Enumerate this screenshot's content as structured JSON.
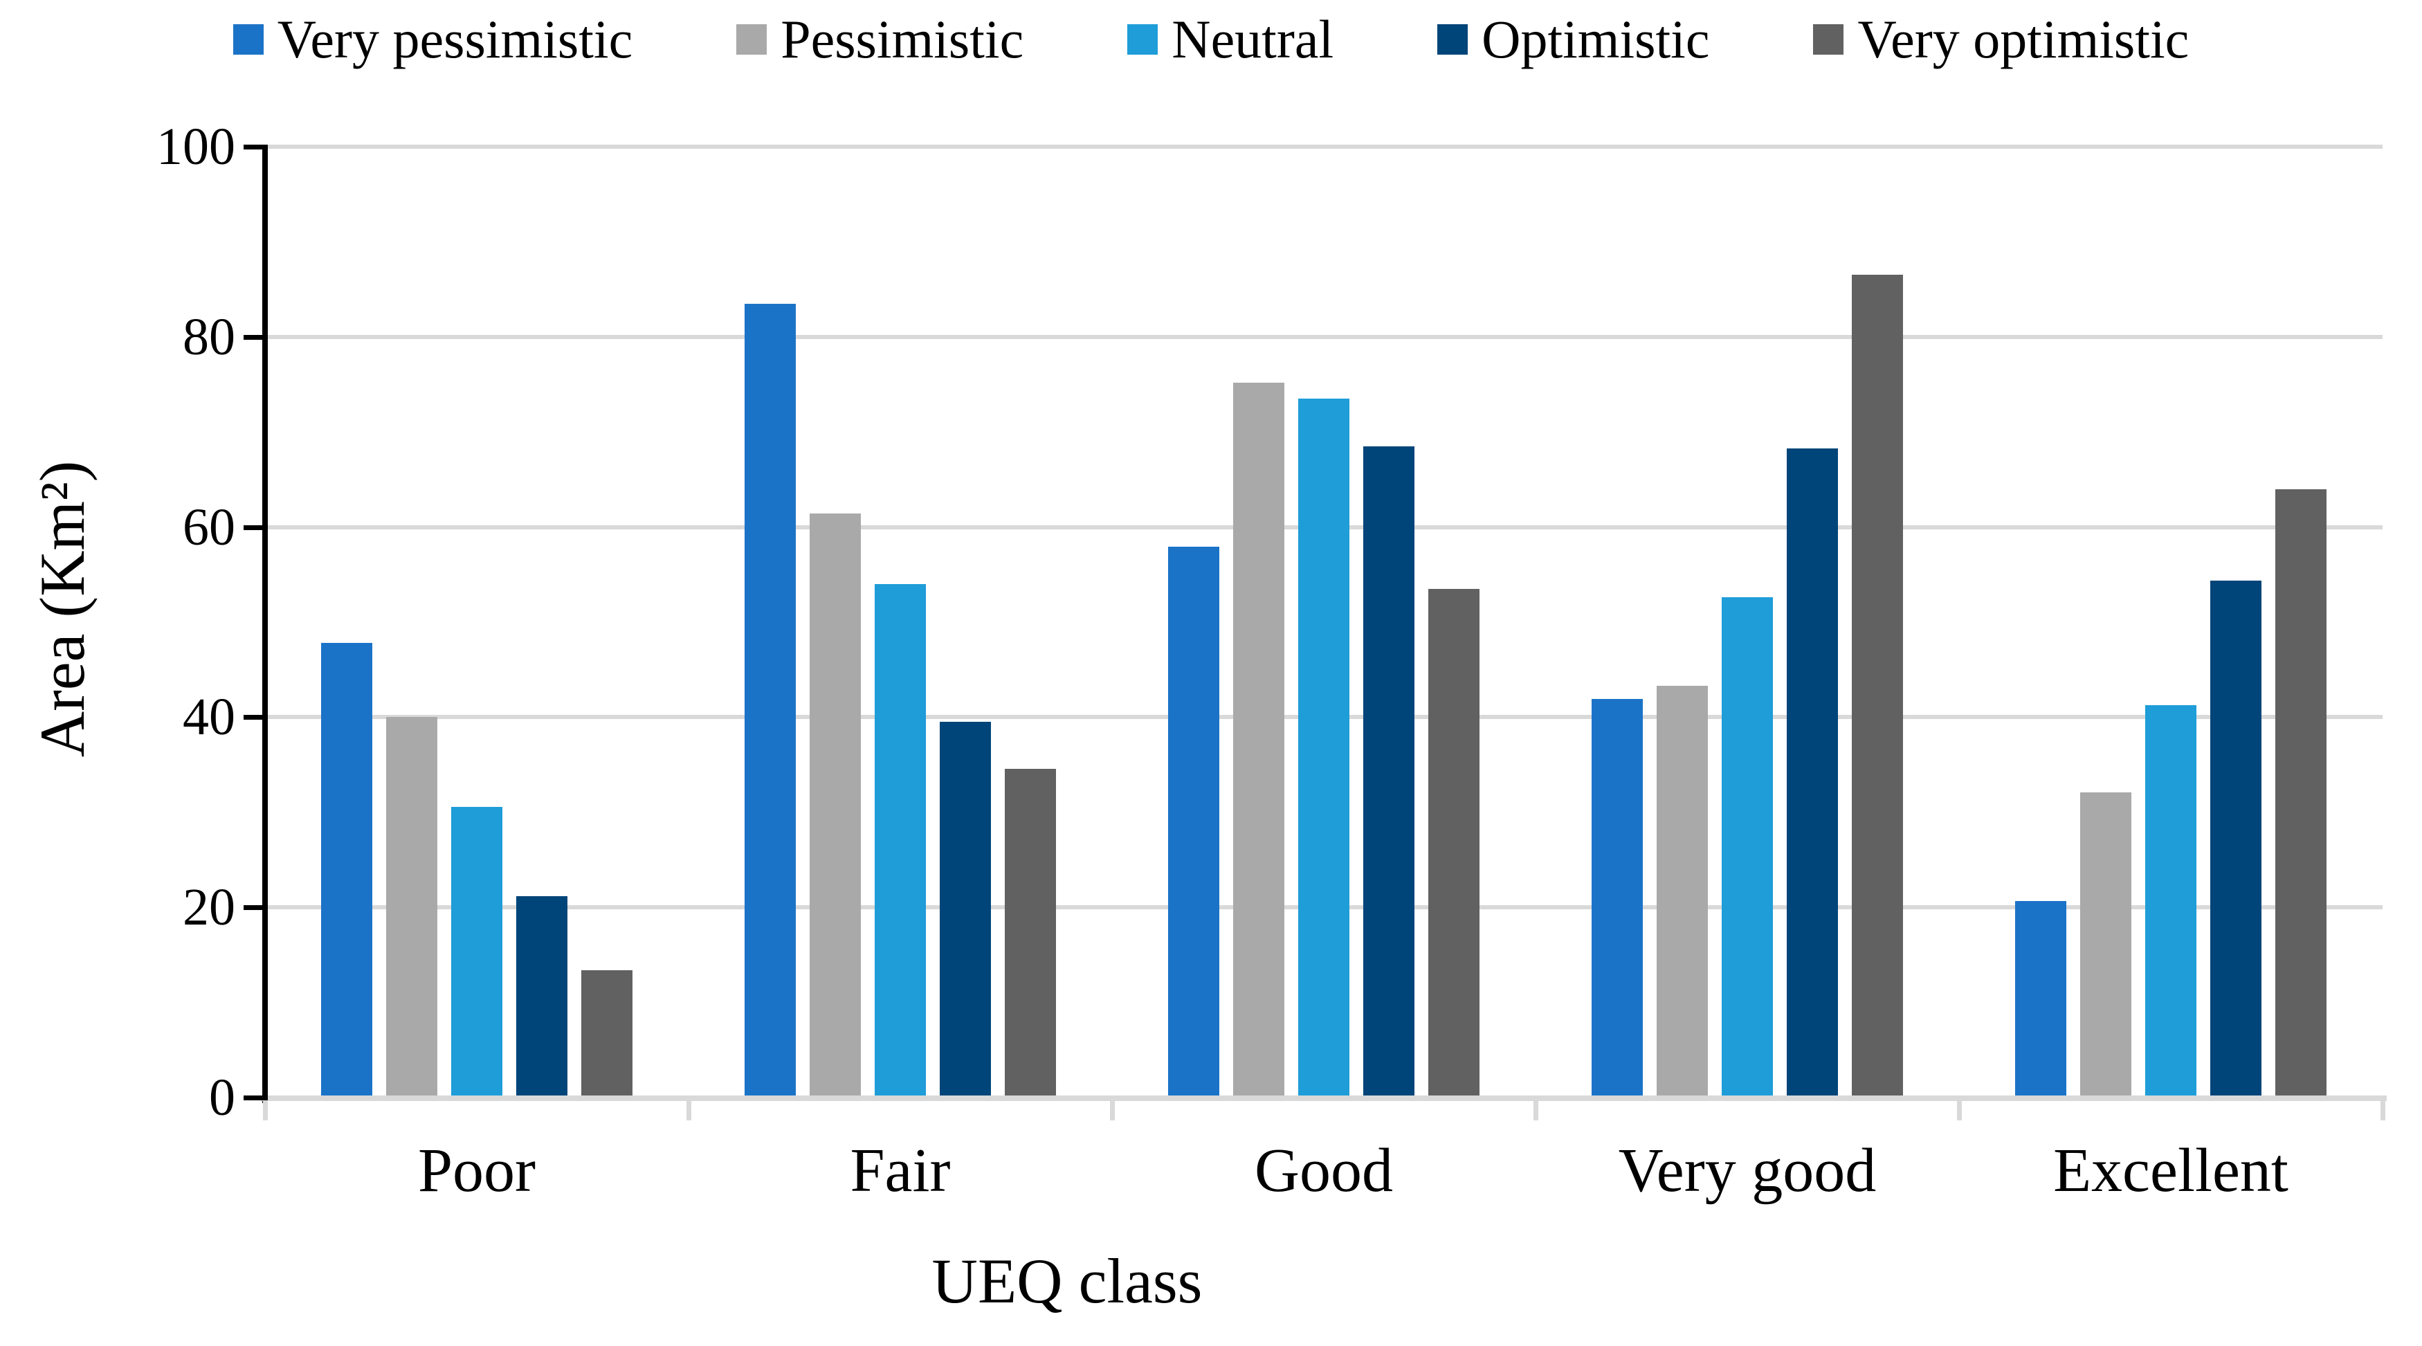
{
  "chart_data": {
    "type": "bar",
    "title": "",
    "xlabel": "UEQ class",
    "ylabel": "Area (Km²)",
    "categories": [
      "Poor",
      "Fair",
      "Good",
      "Very good",
      "Excellent"
    ],
    "series": [
      {
        "name": "Very pessimistic",
        "color": "#1B73C7",
        "values": [
          47.8,
          83.5,
          57.9,
          41.9,
          20.7
        ]
      },
      {
        "name": "Pessimistic",
        "color": "#A9A9A9",
        "values": [
          40.0,
          61.4,
          75.2,
          43.3,
          32.1
        ]
      },
      {
        "name": "Neutral",
        "color": "#1E9DD8",
        "values": [
          30.6,
          54.0,
          73.5,
          52.6,
          41.3
        ]
      },
      {
        "name": "Optimistic",
        "color": "#004579",
        "values": [
          21.2,
          39.5,
          68.5,
          68.3,
          54.4
        ]
      },
      {
        "name": "Very optimistic",
        "color": "#616161",
        "values": [
          13.4,
          34.6,
          53.5,
          86.5,
          64.0
        ]
      }
    ],
    "ylim": [
      0,
      100
    ],
    "yticks": [
      0,
      20,
      40,
      60,
      80,
      100
    ],
    "grid": true,
    "legend_position": "top",
    "colors": {
      "gridline": "#D9D9D9",
      "x_axis_line": "#D9D9D9",
      "y_axis_line": "#000000",
      "text": "#000000"
    }
  }
}
